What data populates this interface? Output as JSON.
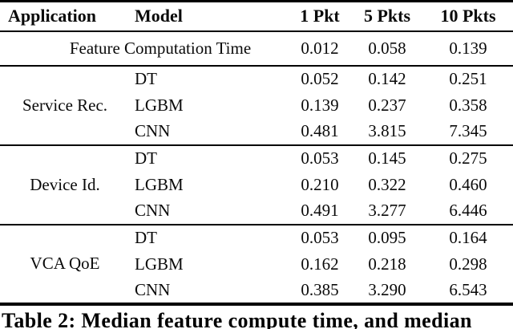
{
  "table": {
    "headers": {
      "application": "Application",
      "model": "Model",
      "pkt1": "1 Pkt",
      "pkt5": "5 Pkts",
      "pkt10": "10 Pkts"
    },
    "feature_row": {
      "label": "Feature Computation Time",
      "values": [
        "0.012",
        "0.058",
        "0.139"
      ]
    },
    "sections": [
      {
        "application": "Service Rec.",
        "rows": [
          {
            "model": "DT",
            "values": [
              "0.052",
              "0.142",
              "0.251"
            ]
          },
          {
            "model": "LGBM",
            "values": [
              "0.139",
              "0.237",
              "0.358"
            ]
          },
          {
            "model": "CNN",
            "values": [
              "0.481",
              "3.815",
              "7.345"
            ]
          }
        ]
      },
      {
        "application": "Device Id.",
        "rows": [
          {
            "model": "DT",
            "values": [
              "0.053",
              "0.145",
              "0.275"
            ]
          },
          {
            "model": "LGBM",
            "values": [
              "0.210",
              "0.322",
              "0.460"
            ]
          },
          {
            "model": "CNN",
            "values": [
              "0.491",
              "3.277",
              "6.446"
            ]
          }
        ]
      },
      {
        "application": "VCA QoE",
        "rows": [
          {
            "model": "DT",
            "values": [
              "0.053",
              "0.095",
              "0.164"
            ]
          },
          {
            "model": "LGBM",
            "values": [
              "0.162",
              "0.218",
              "0.298"
            ]
          },
          {
            "model": "CNN",
            "values": [
              "0.385",
              "3.290",
              "6.543"
            ]
          }
        ]
      }
    ]
  },
  "caption": "Table 2: Median feature compute time, and median",
  "colors": {
    "text": "#0a0a0a",
    "rule": "#000000",
    "background": "#ffffff"
  }
}
